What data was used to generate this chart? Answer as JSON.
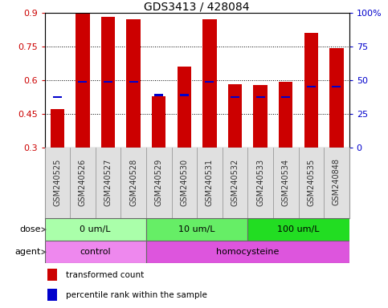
{
  "title": "GDS3413 / 428084",
  "samples": [
    "GSM240525",
    "GSM240526",
    "GSM240527",
    "GSM240528",
    "GSM240529",
    "GSM240530",
    "GSM240531",
    "GSM240532",
    "GSM240533",
    "GSM240534",
    "GSM240535",
    "GSM240848"
  ],
  "transformed_count": [
    0.474,
    0.896,
    0.882,
    0.872,
    0.528,
    0.662,
    0.872,
    0.583,
    0.58,
    0.592,
    0.812,
    0.745
  ],
  "percentile_rank_left": [
    0.527,
    0.595,
    0.593,
    0.593,
    0.535,
    0.535,
    0.593,
    0.527,
    0.527,
    0.527,
    0.572,
    0.572
  ],
  "bar_bottom": 0.3,
  "ylim_left": [
    0.3,
    0.9
  ],
  "ylim_right": [
    0.0,
    100.0
  ],
  "yticks_left": [
    0.3,
    0.45,
    0.6,
    0.75,
    0.9
  ],
  "ytick_labels_left": [
    "0.3",
    "0.45",
    "0.6",
    "0.75",
    "0.9"
  ],
  "yticks_right": [
    0,
    25,
    50,
    75,
    100
  ],
  "ytick_labels_right": [
    "0",
    "25",
    "50",
    "75",
    "100%"
  ],
  "red_color": "#CC0000",
  "blue_color": "#0000CC",
  "dose_groups": [
    {
      "label": "0 um/L",
      "start": 0,
      "end": 4,
      "color": "#AAFFAA"
    },
    {
      "label": "10 um/L",
      "start": 4,
      "end": 8,
      "color": "#66EE66"
    },
    {
      "label": "100 um/L",
      "start": 8,
      "end": 12,
      "color": "#22DD22"
    }
  ],
  "agent_groups": [
    {
      "label": "control",
      "start": 0,
      "end": 4,
      "color": "#EE88EE"
    },
    {
      "label": "homocysteine",
      "start": 4,
      "end": 12,
      "color": "#DD55DD"
    }
  ],
  "dose_label": "dose",
  "agent_label": "agent",
  "legend_red": "transformed count",
  "legend_blue": "percentile rank within the sample",
  "bar_width": 0.55,
  "axis_bg": "#E0E0E0",
  "blue_bar_height": 0.008,
  "blue_bar_width": 0.35
}
